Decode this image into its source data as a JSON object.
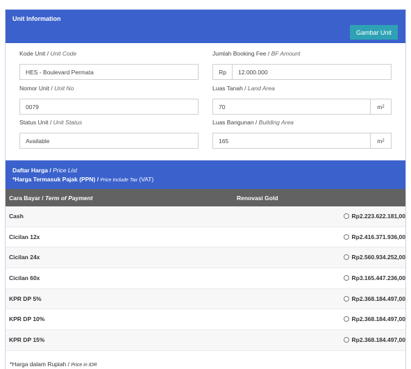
{
  "unit_card": {
    "title": "Unit Information",
    "gambar_button": "Gambar Unit",
    "kode_unit": {
      "label": "Kode Unit",
      "label_en": "Unit Code",
      "value": "HES - Boulevard Permata"
    },
    "booking_fee": {
      "label": "Jumlah Booking Fee",
      "label_en": "BF Amount",
      "prefix": "Rp",
      "value": "12.000.000"
    },
    "nomor_unit": {
      "label": "Nomor Unit",
      "label_en": "Unit No",
      "value": "0079"
    },
    "luas_tanah": {
      "label": "Luas Tanah",
      "label_en": "Land Area",
      "value": "70",
      "unit": "m",
      "unit_sup": "2"
    },
    "status_unit": {
      "label": "Status Unit",
      "label_en": "Unit Status",
      "value": "Available"
    },
    "luas_bangunan": {
      "label": "Luas Bangunan",
      "label_en": "Building Area",
      "value": "165",
      "unit": "m",
      "unit_sup": "2"
    }
  },
  "price_card": {
    "title": "Daftar Harga",
    "title_en": "Price List",
    "tax_note": "*Harga Termasuk Pajak (PPN)",
    "tax_note_en": "Price Include Tax",
    "tax_note_suffix": "(VAT)",
    "col_term": "Cara Bayar",
    "col_term_en": "Term of Payment",
    "col_product": "Renovasi Gold",
    "rows": [
      {
        "term": "Cash",
        "price": "Rp2.223.622.181,00"
      },
      {
        "term": "Cicilan 12x",
        "price": "Rp2.416.371.936,00"
      },
      {
        "term": "Cicilan 24x",
        "price": "Rp2.560.934.252,00"
      },
      {
        "term": "Cicilan 60x",
        "price": "Rp3.165.447.236,00"
      },
      {
        "term": "KPR DP 5%",
        "price": "Rp2.368.184.497,00"
      },
      {
        "term": "KPR DP 10%",
        "price": "Rp2.368.184.497,00"
      },
      {
        "term": "KPR DP 15%",
        "price": "Rp2.368.184.497,00"
      }
    ],
    "footnote": "*Harga dalam Rupiah",
    "footnote_en": "Price in IDR"
  },
  "colors": {
    "header_blue": "#3b62cc",
    "button_teal": "#2ea2b4",
    "table_header_gray": "#626262"
  }
}
